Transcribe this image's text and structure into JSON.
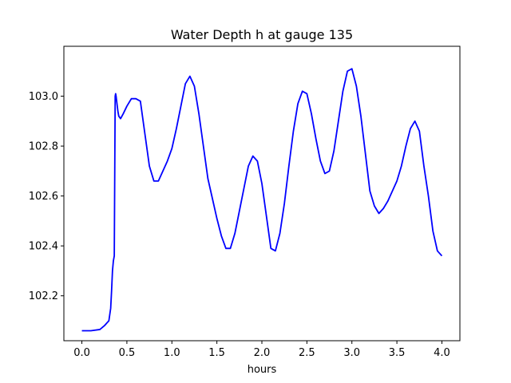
{
  "chart_data": {
    "type": "line",
    "title": "Water Depth h at gauge 135",
    "xlabel": "hours",
    "ylabel": "",
    "xlim": [
      -0.2,
      4.2
    ],
    "ylim": [
      102.02,
      103.2
    ],
    "xticks": [
      0.0,
      0.5,
      1.0,
      1.5,
      2.0,
      2.5,
      3.0,
      3.5,
      4.0
    ],
    "xtick_labels": [
      "0.0",
      "0.5",
      "1.0",
      "1.5",
      "2.0",
      "2.5",
      "3.0",
      "3.5",
      "4.0"
    ],
    "yticks": [
      102.2,
      102.4,
      102.6,
      102.8,
      103.0
    ],
    "ytick_labels": [
      "102.2",
      "102.4",
      "102.6",
      "102.8",
      "103.0"
    ],
    "grid": false,
    "color": "#0000ff",
    "series": [
      {
        "name": "",
        "x": [
          0.0,
          0.1,
          0.2,
          0.25,
          0.3,
          0.32,
          0.33,
          0.34,
          0.35,
          0.36,
          0.37,
          0.375,
          0.38,
          0.4,
          0.41,
          0.43,
          0.46,
          0.5,
          0.55,
          0.6,
          0.65,
          0.7,
          0.75,
          0.8,
          0.85,
          0.9,
          0.95,
          1.0,
          1.05,
          1.1,
          1.15,
          1.2,
          1.25,
          1.3,
          1.35,
          1.4,
          1.45,
          1.5,
          1.55,
          1.6,
          1.65,
          1.7,
          1.75,
          1.8,
          1.85,
          1.9,
          1.95,
          2.0,
          2.05,
          2.1,
          2.15,
          2.2,
          2.25,
          2.3,
          2.35,
          2.4,
          2.45,
          2.5,
          2.55,
          2.6,
          2.65,
          2.7,
          2.75,
          2.8,
          2.85,
          2.9,
          2.95,
          3.0,
          3.05,
          3.1,
          3.15,
          3.2,
          3.25,
          3.3,
          3.35,
          3.4,
          3.45,
          3.5,
          3.55,
          3.6,
          3.65,
          3.7,
          3.75,
          3.8,
          3.85,
          3.9,
          3.95,
          4.0
        ],
        "y": [
          102.06,
          102.06,
          102.065,
          102.08,
          102.1,
          102.15,
          102.22,
          102.3,
          102.34,
          102.36,
          103.0,
          103.01,
          103.0,
          102.94,
          102.92,
          102.91,
          102.93,
          102.96,
          102.99,
          102.99,
          102.98,
          102.85,
          102.72,
          102.66,
          102.66,
          102.7,
          102.74,
          102.79,
          102.87,
          102.96,
          103.05,
          103.08,
          103.04,
          102.93,
          102.8,
          102.67,
          102.59,
          102.51,
          102.44,
          102.39,
          102.39,
          102.45,
          102.54,
          102.63,
          102.72,
          102.76,
          102.74,
          102.65,
          102.52,
          102.39,
          102.38,
          102.45,
          102.57,
          102.72,
          102.86,
          102.97,
          103.02,
          103.01,
          102.93,
          102.83,
          102.74,
          102.69,
          102.7,
          102.78,
          102.9,
          103.02,
          103.1,
          103.11,
          103.04,
          102.92,
          102.77,
          102.62,
          102.56,
          102.53,
          102.55,
          102.58,
          102.62,
          102.66,
          102.72,
          102.8,
          102.87,
          102.9,
          102.86,
          102.72,
          102.6,
          102.46,
          102.38,
          102.36
        ]
      }
    ]
  }
}
